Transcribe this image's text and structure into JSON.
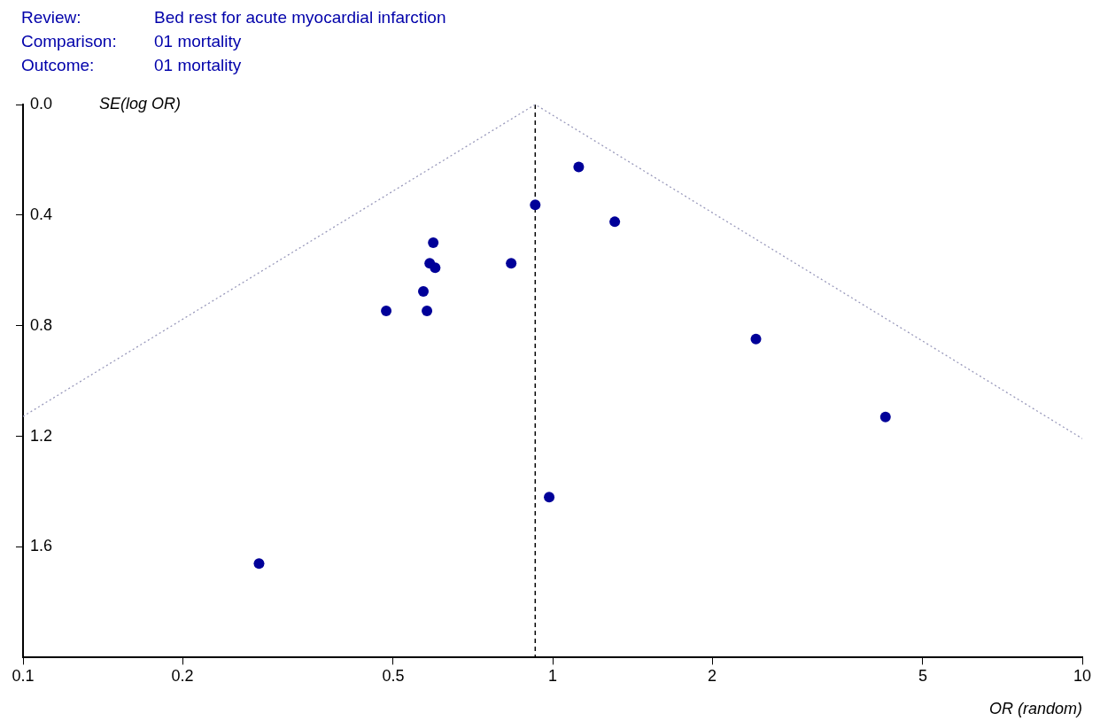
{
  "chart_data": {
    "type": "scatter",
    "xlabel": "OR (random)",
    "ylabel": "SE(log OR)",
    "annotations": [
      "Review:",
      "Bed rest for acute myocardial infarction",
      "Comparison:",
      "01 mortality",
      "Outcome:",
      "01 mortality"
    ],
    "log": "x",
    "xlim": [
      0.1,
      10
    ],
    "xticks": [
      0.1,
      0.2,
      0.5,
      1,
      2,
      5,
      10
    ],
    "ylim": [
      2.0,
      0
    ],
    "yticks": [
      {
        "value": 0,
        "label": "0.0"
      },
      0.4,
      0.8,
      1.2,
      1.6
    ],
    "grid": false,
    "legend": false,
    "marker": "circle",
    "ref_lines": [
      {
        "axis": "x",
        "value": 0.927,
        "color": "#000000",
        "line_style": "dashed"
      }
    ],
    "series": [
      {
        "color": "#000099",
        "x": [
          1.12,
          0.927,
          1.31,
          0.595,
          0.586,
          0.6,
          0.835,
          0.57,
          0.485,
          0.579,
          2.42,
          4.25,
          0.985,
          0.279
        ],
        "values": [
          0.226,
          0.363,
          0.424,
          0.5,
          0.574,
          0.59,
          0.574,
          0.676,
          0.746,
          0.746,
          0.848,
          1.13,
          1.42,
          1.66
        ]
      },
      {
        "type": "line",
        "color": "#9999bb",
        "line_style": "dotted",
        "marker": "none",
        "x": [
          0.1,
          0.927,
          10
        ],
        "values": [
          1.128,
          0,
          1.208
        ]
      }
    ]
  }
}
